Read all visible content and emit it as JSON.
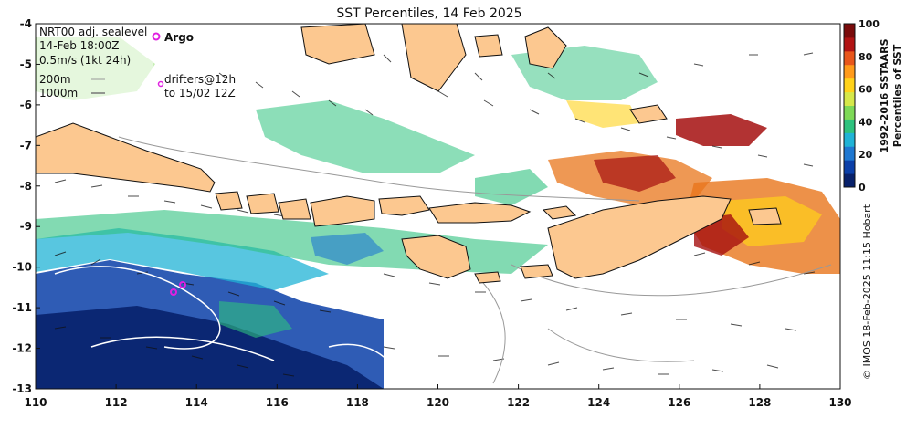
{
  "title": "SST Percentiles, 14 Feb 2025",
  "legend_box": {
    "lines": [
      "NRT00 adj. sealevel",
      "14-Feb 18:00Z",
      "0.5m/s (1kt 24h)",
      "200m",
      "1000m"
    ],
    "argo_label": "Argo",
    "drifters_lines": [
      "drifters@12h",
      "to 15/02 12Z"
    ]
  },
  "colorbar": {
    "title_line1": "1992-2016 SSTAARS",
    "title_line2": "Percentiles of SST",
    "ticks": [
      "100",
      "80",
      "60",
      "40",
      "20",
      "0"
    ],
    "colors": [
      "#08216b",
      "#0b3fa8",
      "#1f78d1",
      "#20b3d6",
      "#2ec27e",
      "#7ed957",
      "#d6e84a",
      "#ffd21a",
      "#ff9a1a",
      "#e8561b",
      "#b11313",
      "#7a0b0b"
    ]
  },
  "credit": "© IMOS 18-Feb-2025 11:15 Hobart",
  "axes": {
    "x_ticks": [
      "110",
      "112",
      "114",
      "116",
      "118",
      "120",
      "122",
      "124",
      "126",
      "128",
      "130"
    ],
    "y_ticks": [
      "-4",
      "-5",
      "-6",
      "-7",
      "-8",
      "-9",
      "-10",
      "-11",
      "-12",
      "-13"
    ],
    "x_range": [
      110,
      130
    ],
    "y_range": [
      -13,
      -4
    ]
  },
  "colors": {
    "land": "#fcc890",
    "warm_high": "#a50f0f",
    "warm_mid": "#e8761b",
    "neutral": "#37c27a",
    "cool": "#1f5fd1",
    "cold": "#08216b",
    "argo": "#e020e0"
  }
}
